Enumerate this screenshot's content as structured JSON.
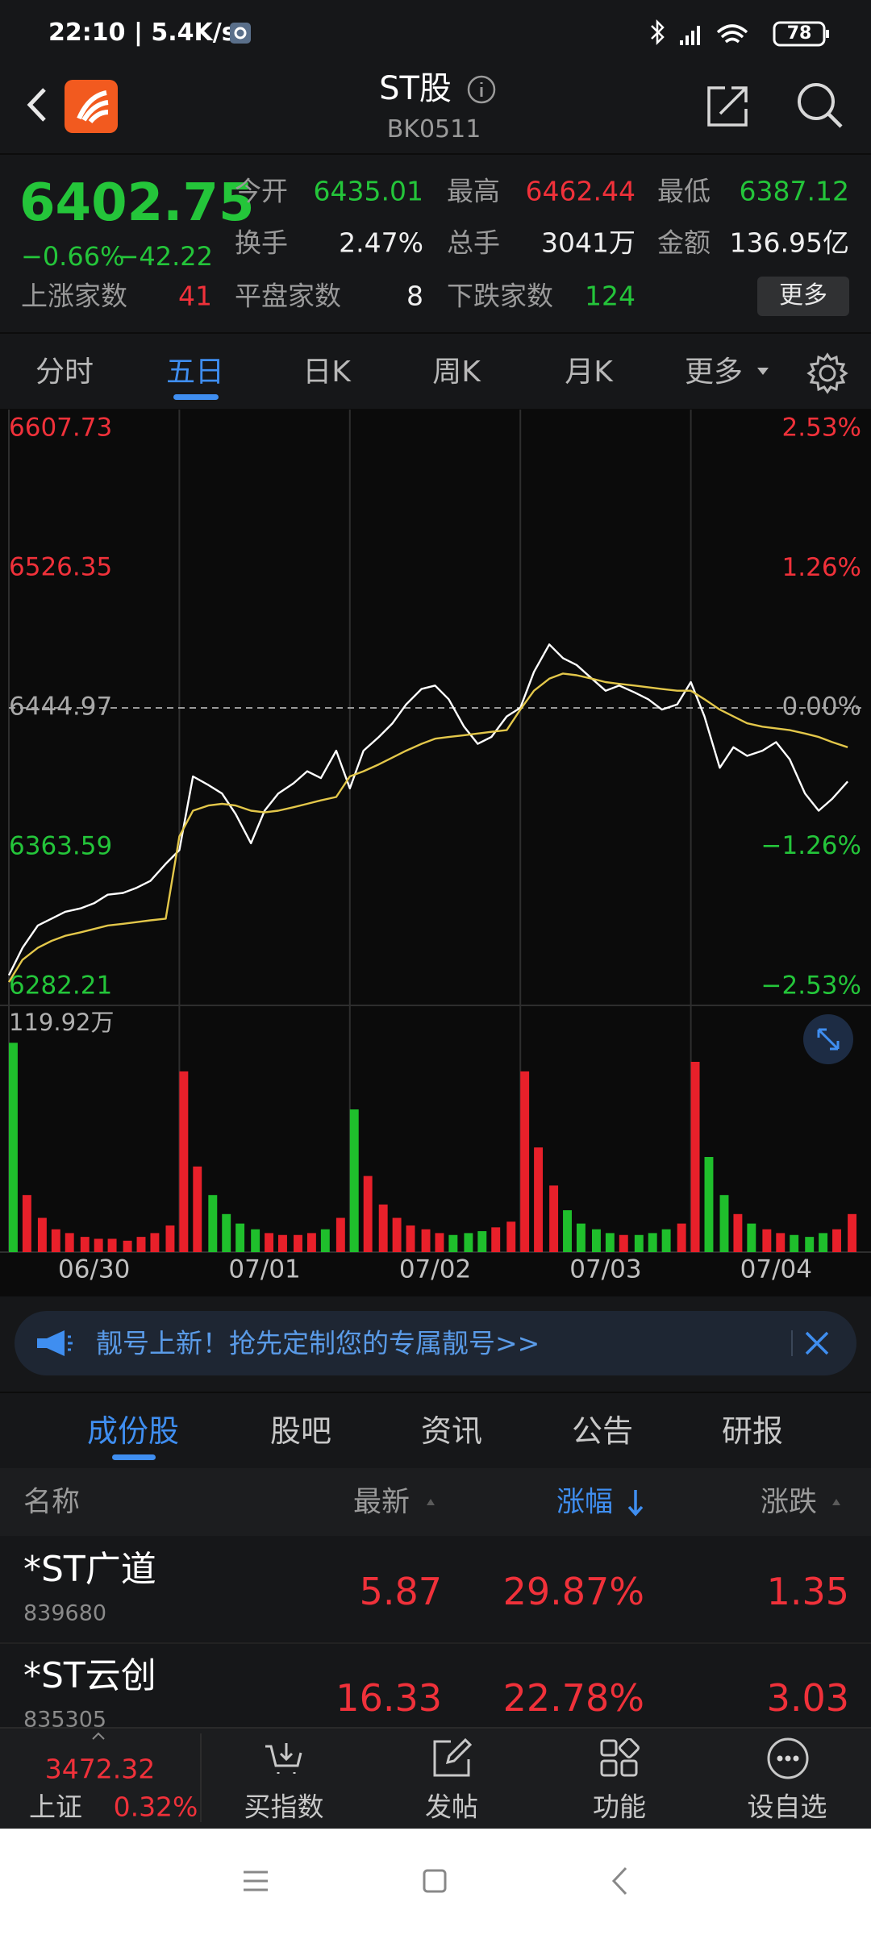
{
  "status_bar": {
    "time": "22:10 | 5.4K/s",
    "battery": "78"
  },
  "header": {
    "title": "ST股",
    "code": "BK0511"
  },
  "quote": {
    "price": "6402.75",
    "change_pct": "−0.66%",
    "change": "−42.22",
    "stats": [
      {
        "label": "今开",
        "value": "6435.01"
      },
      {
        "label": "最高",
        "value": "6462.44"
      },
      {
        "label": "最低",
        "value": "6387.12"
      },
      {
        "label": "换手",
        "value": "2.47%"
      },
      {
        "label": "总手",
        "value": "3041万"
      },
      {
        "label": "金额",
        "value": "136.95亿"
      }
    ],
    "breadth": [
      {
        "label": "上涨家数",
        "value": "41"
      },
      {
        "label": "平盘家数",
        "value": "8"
      },
      {
        "label": "下跌家数",
        "value": "124"
      }
    ],
    "more": "更多"
  },
  "tabs": [
    "分时",
    "五日",
    "日K",
    "周K",
    "月K",
    "更多"
  ],
  "chart_data": [
    {
      "type": "line",
      "ylim": [
        6282.21,
        6607.73
      ],
      "yticks": [
        6607.73,
        6526.35,
        6444.97,
        6363.59,
        6282.21
      ],
      "y2lim": [
        -2.53,
        2.53
      ],
      "y2ticks": [
        {
          "value": 2.53,
          "label": "2.53%"
        },
        {
          "value": 1.26,
          "label": "1.26%"
        },
        {
          "value": 0,
          "label": "0.00%"
        },
        {
          "value": -1.26,
          "label": "−1.26%"
        },
        {
          "value": -2.53,
          "label": "−2.53%"
        }
      ],
      "base": 6444.97,
      "up_color": "#f0313a",
      "down_color": "#24c53a",
      "flat_color": "#a8a8a8",
      "xlim": [
        0,
        5
      ],
      "day_lines": [
        1,
        2,
        3,
        4
      ],
      "x": [
        0,
        0.08,
        0.17,
        0.25,
        0.33,
        0.42,
        0.5,
        0.58,
        0.67,
        0.75,
        0.83,
        0.92,
        1,
        1.08,
        1.17,
        1.25,
        1.33,
        1.42,
        1.5,
        1.58,
        1.67,
        1.75,
        1.83,
        1.92,
        2,
        2.08,
        2.17,
        2.25,
        2.33,
        2.42,
        2.5,
        2.58,
        2.67,
        2.75,
        2.83,
        2.92,
        3,
        3.08,
        3.17,
        3.25,
        3.33,
        3.42,
        3.5,
        3.58,
        3.67,
        3.75,
        3.83,
        3.92,
        4,
        4.08,
        4.17,
        4.25,
        4.33,
        4.42,
        4.5,
        4.58,
        4.67,
        4.75,
        4.83,
        4.92
      ],
      "series": [
        {
          "color": "#ffffff",
          "values": [
            6289,
            6305,
            6318,
            6322,
            6326,
            6328,
            6331,
            6336,
            6337,
            6340,
            6344,
            6354,
            6362,
            6405,
            6400,
            6395,
            6383,
            6366,
            6385,
            6395,
            6401,
            6408,
            6404,
            6420,
            6398,
            6420,
            6428,
            6436,
            6447,
            6456,
            6458,
            6450,
            6434,
            6424,
            6428,
            6440,
            6445,
            6466,
            6482,
            6474,
            6470,
            6462,
            6455,
            6458,
            6454,
            6450,
            6444,
            6447,
            6460,
            6440,
            6410,
            6422,
            6417,
            6420,
            6425,
            6415,
            6395,
            6385,
            6392,
            6402
          ]
        },
        {
          "color": "#e3c74a",
          "values": [
            6285,
            6298,
            6305,
            6309,
            6312,
            6314,
            6316,
            6318,
            6319,
            6320,
            6321,
            6322,
            6370,
            6385,
            6388,
            6389,
            6388,
            6385,
            6384,
            6385,
            6387,
            6389,
            6391,
            6393,
            6405,
            6408,
            6412,
            6416,
            6420,
            6424,
            6427,
            6428,
            6429,
            6430,
            6431,
            6432,
            6444,
            6455,
            6462,
            6465,
            6464,
            6462,
            6460,
            6459,
            6458,
            6457,
            6456,
            6455,
            6455,
            6450,
            6444,
            6440,
            6436,
            6434,
            6433,
            6432,
            6430,
            6428,
            6425,
            6422
          ]
        }
      ]
    },
    {
      "type": "bar",
      "ylim": [
        0,
        119.92
      ],
      "yticks": [
        {
          "value": 119.92,
          "label": "119.92万"
        }
      ],
      "xlim": [
        0,
        5
      ],
      "xticks": [
        {
          "value": 0.5,
          "label": "06/30"
        },
        {
          "value": 1.5,
          "label": "07/01"
        },
        {
          "value": 2.5,
          "label": "07/02"
        },
        {
          "value": 3.5,
          "label": "07/03"
        },
        {
          "value": 4.5,
          "label": "07/04"
        }
      ],
      "up_color": "#e8202a",
      "down_color": "#1fbf2c",
      "x": [
        0,
        0.08,
        0.17,
        0.25,
        0.33,
        0.42,
        0.5,
        0.58,
        0.67,
        0.75,
        0.83,
        0.92,
        1,
        1.08,
        1.17,
        1.25,
        1.33,
        1.42,
        1.5,
        1.58,
        1.67,
        1.75,
        1.83,
        1.92,
        2,
        2.08,
        2.17,
        2.25,
        2.33,
        2.42,
        2.5,
        2.58,
        2.67,
        2.75,
        2.83,
        2.92,
        3,
        3.08,
        3.17,
        3.25,
        3.33,
        3.42,
        3.5,
        3.58,
        3.67,
        3.75,
        3.83,
        3.92,
        4,
        4.08,
        4.17,
        4.25,
        4.33,
        4.42,
        4.5,
        4.58,
        4.67,
        4.75,
        4.83,
        4.92
      ],
      "values": [
        110,
        30,
        18,
        12,
        10,
        8,
        7,
        7,
        6,
        8,
        10,
        14,
        95,
        45,
        30,
        20,
        15,
        12,
        10,
        9,
        9,
        10,
        12,
        18,
        75,
        40,
        25,
        18,
        14,
        12,
        10,
        9,
        10,
        11,
        13,
        16,
        95,
        55,
        35,
        22,
        15,
        12,
        10,
        9,
        9,
        10,
        12,
        15,
        100,
        50,
        30,
        20,
        15,
        12,
        10,
        9,
        8,
        10,
        12,
        20
      ]
    }
  ],
  "banner": "靓号上新！抢先定制您的专属靓号>>",
  "sub_tabs": [
    "成份股",
    "股吧",
    "资讯",
    "公告",
    "研报"
  ],
  "table": {
    "columns": [
      "名称",
      "最新",
      "涨幅",
      "涨跌"
    ],
    "rows": [
      {
        "name": "*ST广道",
        "code": "839680",
        "cells": [
          "5.87",
          "29.87%",
          "1.35"
        ]
      },
      {
        "name": "*ST云创",
        "code": "835305",
        "cells": [
          "16.33",
          "22.78%",
          "3.03"
        ]
      }
    ]
  },
  "bottom_bar": {
    "index_value": "3472.32",
    "index_name": "上证",
    "index_change": "0.32%",
    "items": [
      "买指数",
      "发帖",
      "功能",
      "设自选"
    ]
  }
}
